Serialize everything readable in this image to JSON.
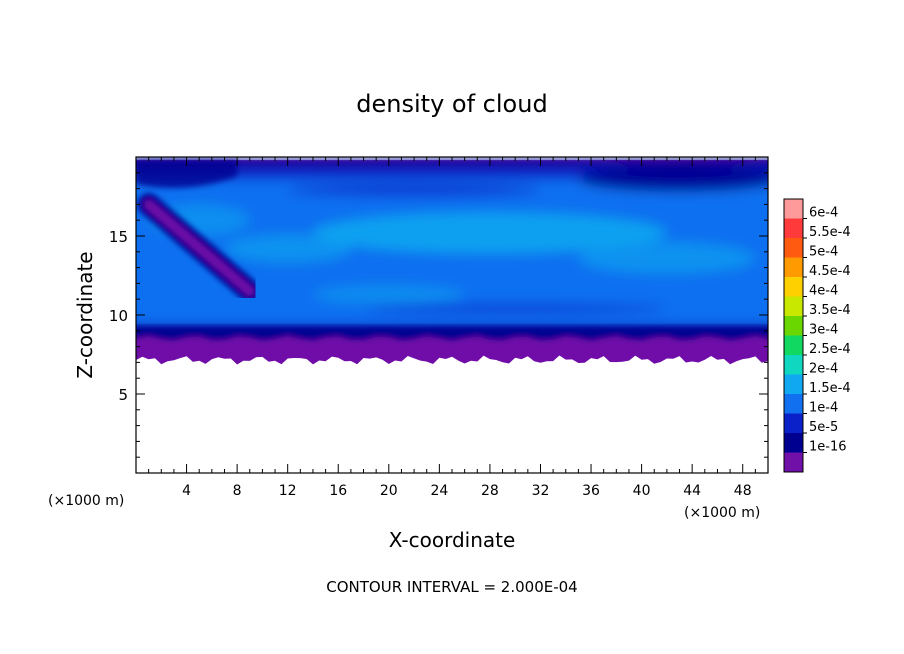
{
  "chart_data": {
    "type": "heatmap",
    "title": "density of cloud",
    "xlabel": "X-coordinate",
    "ylabel": "Z-coordinate",
    "x_unit_label": "(×1000 m)",
    "x_unit_label_right": "(×1000 m)",
    "xlim": [
      0,
      50
    ],
    "ylim": [
      0,
      20
    ],
    "x_ticks": [
      4,
      8,
      12,
      16,
      20,
      24,
      28,
      32,
      36,
      40,
      44,
      48
    ],
    "x_tick_labels": [
      "4",
      "8",
      "12",
      "16",
      "20",
      "24",
      "28",
      "32",
      "36",
      "40",
      "44",
      "48"
    ],
    "y_ticks": [
      5,
      10,
      15
    ],
    "y_tick_labels": [
      "5",
      "10",
      "15"
    ],
    "footer": "CONTOUR INTERVAL = 2.000E-04",
    "colorbar": {
      "labels": [
        "6e-4",
        "5.5e-4",
        "5e-4",
        "4.5e-4",
        "4e-4",
        "3.5e-4",
        "3e-4",
        "2.5e-4",
        "2e-4",
        "1.5e-4",
        "1e-4",
        "5e-5",
        "1e-16"
      ],
      "colors": [
        "#ff9a9a",
        "#ff3a3a",
        "#ff5a10",
        "#ff9a00",
        "#ffd000",
        "#c8e800",
        "#6ad800",
        "#10d860",
        "#10d8c0",
        "#10a8f0",
        "#1070f0",
        "#0a20c8",
        "#000090",
        "#7010a8"
      ]
    },
    "field": {
      "cloud_base_z": 7.0,
      "cloud_top_z": 19.8,
      "features": [
        {
          "name": "main layer",
          "x_range": [
            0,
            50
          ],
          "z_range": [
            9,
            18
          ],
          "level": "1e-4 to 1.5e-4"
        },
        {
          "name": "diagonal band",
          "from": [
            1,
            17
          ],
          "to": [
            9,
            11.5
          ],
          "level": "1e-16 to 5e-5"
        },
        {
          "name": "lower dark band",
          "x_range": [
            0,
            50
          ],
          "z_range": [
            8.5,
            9.5
          ],
          "level": "5e-5"
        },
        {
          "name": "base fringe",
          "x_range": [
            0,
            50
          ],
          "z_range": [
            7,
            8.5
          ],
          "level": "1e-16"
        },
        {
          "name": "upper right dark",
          "x_range": [
            34,
            50
          ],
          "z_range": [
            18,
            19.8
          ],
          "level": "5e-5"
        }
      ]
    }
  }
}
